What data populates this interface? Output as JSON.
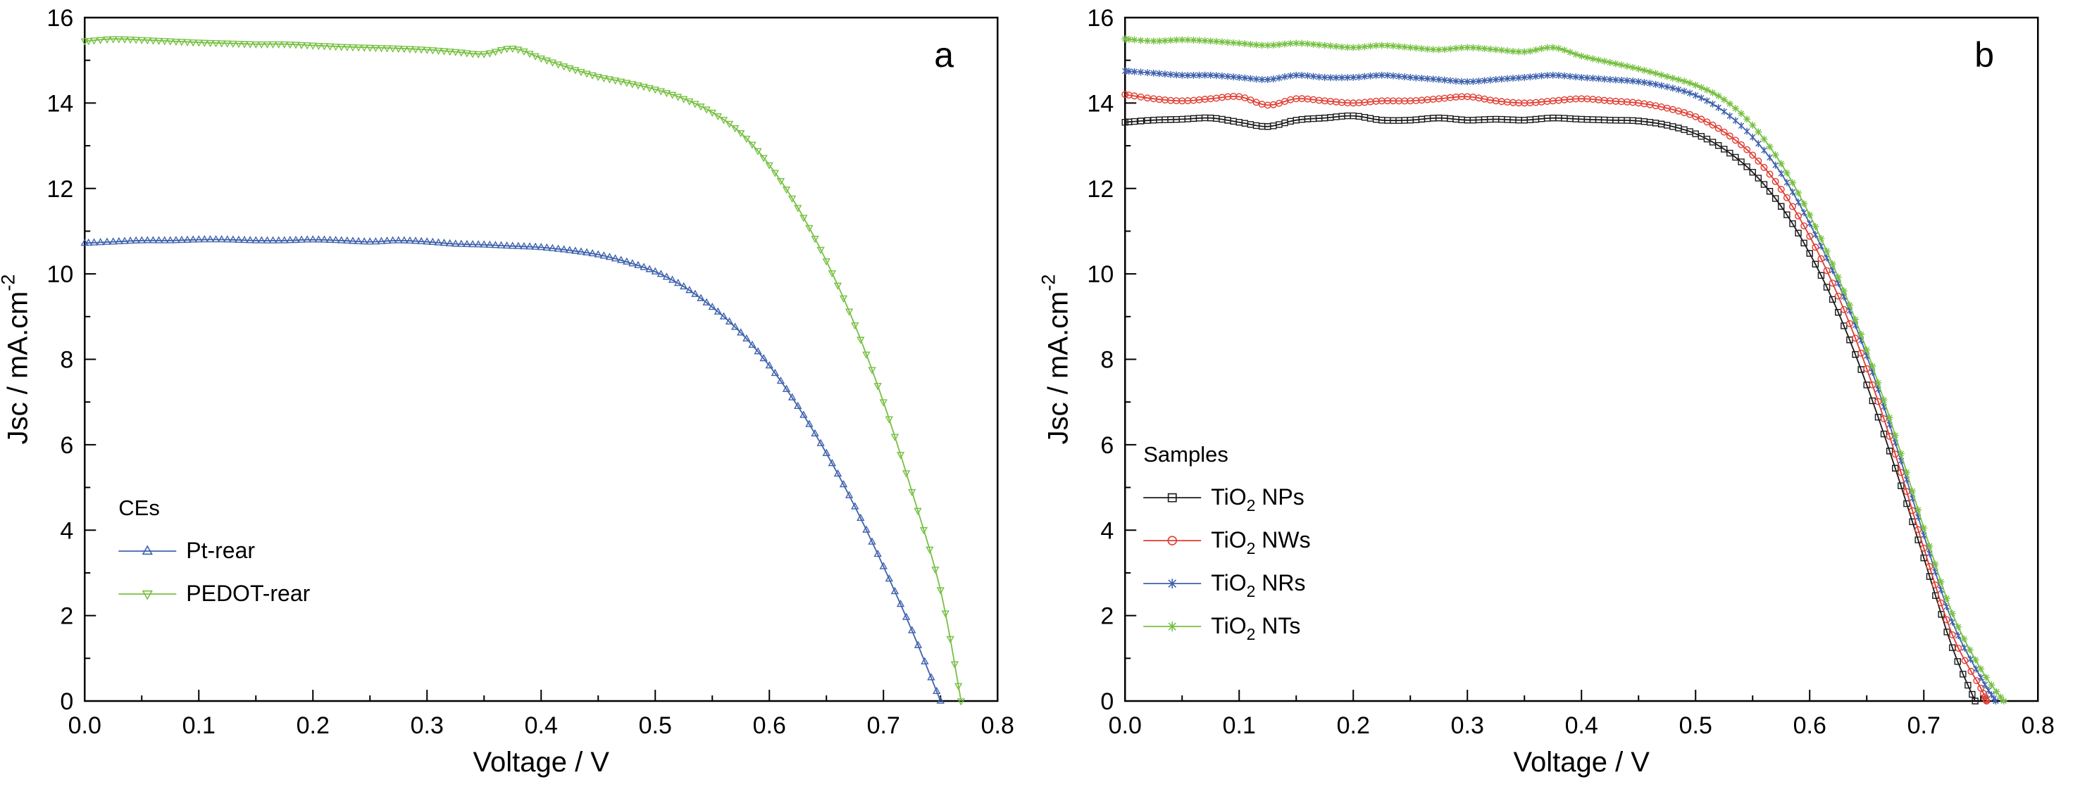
{
  "figure": {
    "background": "#ffffff",
    "axis_color": "#000000"
  },
  "chart_data": [
    {
      "type": "line",
      "panel_label": "a",
      "xlabel": "Voltage / V",
      "ylabel": {
        "text": "Jsc / mA.cm",
        "sup": "-2"
      },
      "xlim": [
        0.0,
        0.8
      ],
      "ylim": [
        0,
        16
      ],
      "x_major_step": 0.1,
      "x_minor_step": 0.05,
      "y_major_step": 2,
      "y_minor_step": 1,
      "x_tick_labels": [
        "0.0",
        "0.1",
        "0.2",
        "0.3",
        "0.4",
        "0.5",
        "0.6",
        "0.7",
        "0.8"
      ],
      "y_tick_labels": [
        "0",
        "2",
        "4",
        "6",
        "8",
        "10",
        "12",
        "14",
        "16"
      ],
      "legend": {
        "title": "CEs",
        "entries": [
          {
            "label": {
              "prefix": "Pt-rear",
              "sub": "",
              "suffix": ""
            },
            "series": 0
          },
          {
            "label": {
              "prefix": "PEDOT-rear",
              "sub": "",
              "suffix": ""
            },
            "series": 1
          }
        ]
      },
      "series": [
        {
          "name": "Pt-rear",
          "color": "#3f62ad",
          "marker": "triangle-up",
          "x": [
            0,
            0.025,
            0.05,
            0.075,
            0.1,
            0.125,
            0.15,
            0.175,
            0.2,
            0.225,
            0.25,
            0.275,
            0.3,
            0.325,
            0.35,
            0.375,
            0.4,
            0.425,
            0.45,
            0.475,
            0.5,
            0.525,
            0.55,
            0.575,
            0.6,
            0.625,
            0.65,
            0.675,
            0.7,
            0.725,
            0.75
          ],
          "y": [
            10.72,
            10.75,
            10.78,
            10.78,
            10.8,
            10.8,
            10.78,
            10.78,
            10.8,
            10.78,
            10.75,
            10.78,
            10.75,
            10.7,
            10.68,
            10.65,
            10.62,
            10.55,
            10.45,
            10.28,
            10.05,
            9.7,
            9.22,
            8.62,
            7.85,
            6.9,
            5.8,
            4.55,
            3.15,
            1.65,
            0.0
          ]
        },
        {
          "name": "PEDOT-rear",
          "color": "#77c043",
          "marker": "triangle-down",
          "x": [
            0,
            0.025,
            0.05,
            0.075,
            0.1,
            0.125,
            0.15,
            0.175,
            0.2,
            0.225,
            0.25,
            0.275,
            0.3,
            0.325,
            0.35,
            0.375,
            0.4,
            0.425,
            0.45,
            0.475,
            0.5,
            0.525,
            0.55,
            0.575,
            0.6,
            0.625,
            0.65,
            0.675,
            0.7,
            0.725,
            0.75,
            0.768
          ],
          "y": [
            15.45,
            15.5,
            15.48,
            15.45,
            15.42,
            15.4,
            15.38,
            15.38,
            15.35,
            15.32,
            15.3,
            15.28,
            15.25,
            15.2,
            15.15,
            15.28,
            15.05,
            14.82,
            14.62,
            14.48,
            14.32,
            14.1,
            13.78,
            13.3,
            12.55,
            11.55,
            10.3,
            8.8,
            7.0,
            4.9,
            2.6,
            0.0
          ]
        }
      ]
    },
    {
      "type": "line",
      "panel_label": "b",
      "xlabel": "Voltage / V",
      "ylabel": {
        "text": "Jsc / mA.cm",
        "sup": "-2"
      },
      "xlim": [
        0.0,
        0.8
      ],
      "ylim": [
        0,
        16
      ],
      "x_major_step": 0.1,
      "x_minor_step": 0.05,
      "y_major_step": 2,
      "y_minor_step": 1,
      "x_tick_labels": [
        "0.0",
        "0.1",
        "0.2",
        "0.3",
        "0.4",
        "0.5",
        "0.6",
        "0.7",
        "0.8"
      ],
      "y_tick_labels": [
        "0",
        "2",
        "4",
        "6",
        "8",
        "10",
        "12",
        "14",
        "16"
      ],
      "legend": {
        "title": "Samples",
        "entries": [
          {
            "label": {
              "prefix": "TiO",
              "sub": "2",
              "suffix": " NPs"
            },
            "series": 0
          },
          {
            "label": {
              "prefix": "TiO",
              "sub": "2",
              "suffix": " NWs"
            },
            "series": 1
          },
          {
            "label": {
              "prefix": "TiO",
              "sub": "2",
              "suffix": " NRs"
            },
            "series": 2
          },
          {
            "label": {
              "prefix": "TiO",
              "sub": "2",
              "suffix": " NTs"
            },
            "series": 3
          }
        ]
      },
      "series": [
        {
          "name": "TiO2 NPs",
          "color": "#1a1a1a",
          "marker": "square",
          "x": [
            0,
            0.025,
            0.05,
            0.075,
            0.1,
            0.125,
            0.15,
            0.175,
            0.2,
            0.225,
            0.25,
            0.275,
            0.3,
            0.325,
            0.35,
            0.375,
            0.4,
            0.425,
            0.45,
            0.475,
            0.5,
            0.525,
            0.55,
            0.575,
            0.6,
            0.625,
            0.65,
            0.675,
            0.7,
            0.725,
            0.745
          ],
          "y": [
            13.55,
            13.6,
            13.62,
            13.65,
            13.55,
            13.45,
            13.6,
            13.65,
            13.7,
            13.6,
            13.6,
            13.65,
            13.6,
            13.62,
            13.6,
            13.65,
            13.62,
            13.6,
            13.58,
            13.48,
            13.28,
            12.92,
            12.38,
            11.58,
            10.48,
            9.1,
            7.4,
            5.45,
            3.35,
            1.25,
            0.0
          ]
        },
        {
          "name": "TiO2 NWs",
          "color": "#e03c31",
          "marker": "circle",
          "x": [
            0,
            0.025,
            0.05,
            0.075,
            0.1,
            0.125,
            0.15,
            0.175,
            0.2,
            0.225,
            0.25,
            0.275,
            0.3,
            0.325,
            0.35,
            0.375,
            0.4,
            0.425,
            0.45,
            0.475,
            0.5,
            0.525,
            0.55,
            0.575,
            0.6,
            0.625,
            0.65,
            0.675,
            0.7,
            0.725,
            0.75,
            0.755
          ],
          "y": [
            14.2,
            14.1,
            14.05,
            14.1,
            14.15,
            13.95,
            14.1,
            14.05,
            14.0,
            14.05,
            14.05,
            14.1,
            14.15,
            14.05,
            14.0,
            14.05,
            14.1,
            14.05,
            14.0,
            13.88,
            13.68,
            13.32,
            12.78,
            11.98,
            10.88,
            9.48,
            7.78,
            5.78,
            3.58,
            1.55,
            0.3,
            0.0
          ]
        },
        {
          "name": "TiO2 NRs",
          "color": "#3f62ad",
          "marker": "x-star",
          "x": [
            0,
            0.025,
            0.05,
            0.075,
            0.1,
            0.125,
            0.15,
            0.175,
            0.2,
            0.225,
            0.25,
            0.275,
            0.3,
            0.325,
            0.35,
            0.375,
            0.4,
            0.425,
            0.45,
            0.475,
            0.5,
            0.525,
            0.55,
            0.575,
            0.6,
            0.625,
            0.65,
            0.675,
            0.7,
            0.725,
            0.75,
            0.763
          ],
          "y": [
            14.75,
            14.7,
            14.65,
            14.65,
            14.6,
            14.55,
            14.65,
            14.6,
            14.6,
            14.65,
            14.6,
            14.55,
            14.5,
            14.55,
            14.6,
            14.65,
            14.6,
            14.55,
            14.5,
            14.38,
            14.18,
            13.8,
            13.2,
            12.35,
            11.18,
            9.78,
            8.08,
            6.05,
            3.88,
            1.85,
            0.55,
            0.0
          ]
        },
        {
          "name": "TiO2 NTs",
          "color": "#77c043",
          "marker": "asterisk",
          "x": [
            0,
            0.025,
            0.05,
            0.075,
            0.1,
            0.125,
            0.15,
            0.175,
            0.2,
            0.225,
            0.25,
            0.275,
            0.3,
            0.325,
            0.35,
            0.375,
            0.4,
            0.425,
            0.45,
            0.475,
            0.5,
            0.525,
            0.55,
            0.575,
            0.6,
            0.625,
            0.65,
            0.675,
            0.7,
            0.725,
            0.75,
            0.77
          ],
          "y": [
            15.5,
            15.45,
            15.48,
            15.45,
            15.4,
            15.35,
            15.4,
            15.35,
            15.3,
            15.35,
            15.3,
            15.25,
            15.3,
            15.25,
            15.2,
            15.3,
            15.1,
            14.95,
            14.8,
            14.62,
            14.42,
            14.08,
            13.48,
            12.58,
            11.38,
            9.92,
            8.22,
            6.22,
            4.05,
            2.05,
            0.75,
            0.0
          ]
        }
      ]
    }
  ]
}
